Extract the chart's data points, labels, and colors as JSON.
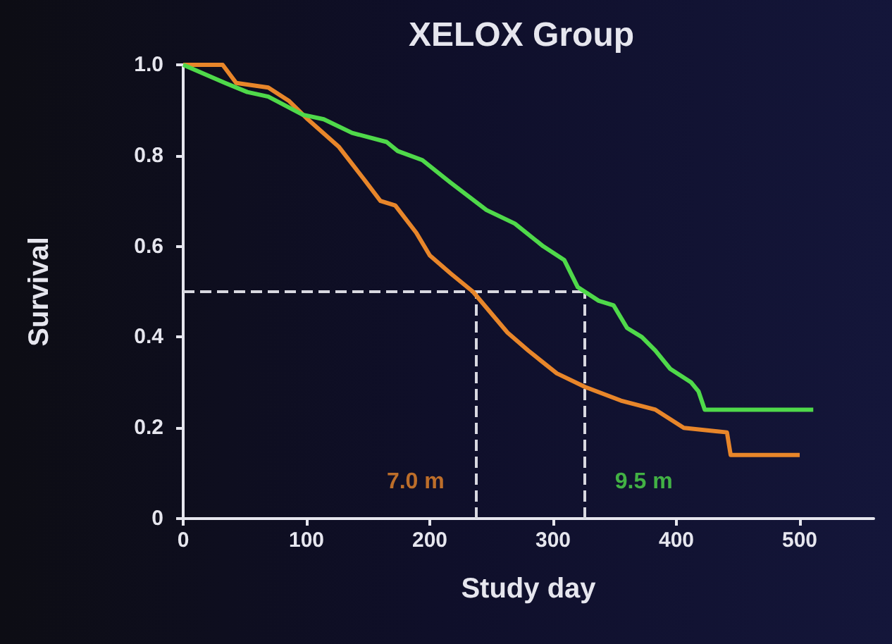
{
  "chart_data": {
    "type": "line",
    "title": "XELOX Group",
    "xlabel": "Study day",
    "ylabel": "Survival",
    "xlim": [
      0,
      560
    ],
    "xticks": [
      0,
      100,
      200,
      300,
      400,
      500
    ],
    "ylim": [
      0,
      1
    ],
    "yticks": [
      0,
      0.2,
      0.4,
      0.6,
      0.8,
      {
        "value": 1,
        "label": "1.0"
      }
    ],
    "grid": false,
    "marker": "none",
    "line_style": "solid",
    "series": [
      {
        "color": "#e8862a",
        "x": [
          0,
          32,
          43,
          69,
          86,
          101,
          126,
          146,
          160,
          172,
          189,
          200,
          217,
          235,
          263,
          280,
          303,
          326,
          355,
          383,
          406,
          441,
          444,
          500
        ],
        "values": [
          1.0,
          1.0,
          0.96,
          0.95,
          0.92,
          0.88,
          0.82,
          0.75,
          0.7,
          0.69,
          0.63,
          0.58,
          0.54,
          0.5,
          0.41,
          0.37,
          0.32,
          0.29,
          0.26,
          0.24,
          0.2,
          0.19,
          0.14,
          0.14
        ]
      },
      {
        "color": "#4fd94a",
        "x": [
          0,
          34,
          52,
          69,
          97,
          114,
          137,
          165,
          174,
          194,
          217,
          246,
          269,
          292,
          309,
          320,
          337,
          349,
          360,
          372,
          383,
          395,
          412,
          418,
          423,
          511
        ],
        "values": [
          1.0,
          0.96,
          0.94,
          0.93,
          0.89,
          0.88,
          0.85,
          0.83,
          0.81,
          0.79,
          0.74,
          0.68,
          0.65,
          0.6,
          0.57,
          0.51,
          0.48,
          0.47,
          0.42,
          0.4,
          0.37,
          0.33,
          0.3,
          0.28,
          0.24,
          0.24
        ]
      }
    ],
    "ref_lines": [
      {
        "axis": "y",
        "value": 0.5,
        "color": "#d8d8e0",
        "line_style": "dashed"
      },
      {
        "axis": "x",
        "value": 237,
        "color": "#d8d8e0",
        "line_style": "dashed"
      },
      {
        "axis": "x",
        "value": 325,
        "color": "#d8d8e0",
        "line_style": "dashed"
      }
    ],
    "annotations": [
      "7.0 m",
      "9.5 m"
    ]
  }
}
